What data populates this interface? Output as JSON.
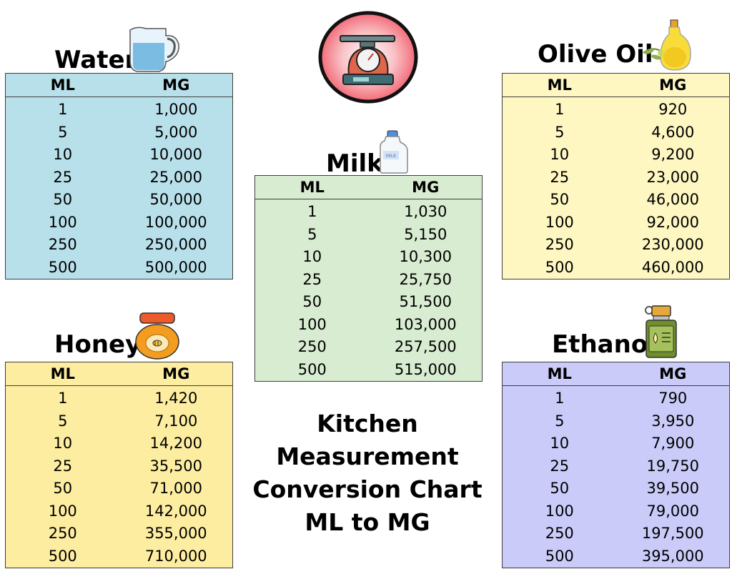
{
  "title": {
    "line1": "Kitchen Measurement",
    "line2": "Conversion Chart",
    "line3": "ML to MG"
  },
  "tables": {
    "water": {
      "name": "Water",
      "icon": "water-pitcher-icon",
      "bg": "#b8e0ea",
      "headers": [
        "ML",
        "MG"
      ],
      "rows": [
        [
          "1",
          "1,000"
        ],
        [
          "5",
          "5,000"
        ],
        [
          "10",
          "10,000"
        ],
        [
          "25",
          "25,000"
        ],
        [
          "50",
          "50,000"
        ],
        [
          "100",
          "100,000"
        ],
        [
          "250",
          "250,000"
        ],
        [
          "500",
          "500,000"
        ]
      ]
    },
    "milk": {
      "name": "Milk",
      "icon": "milk-jug-icon",
      "bg": "#d8ecd1",
      "headers": [
        "ML",
        "MG"
      ],
      "rows": [
        [
          "1",
          "1,030"
        ],
        [
          "5",
          "5,150"
        ],
        [
          "10",
          "10,300"
        ],
        [
          "25",
          "25,750"
        ],
        [
          "50",
          "51,500"
        ],
        [
          "100",
          "103,000"
        ],
        [
          "250",
          "257,500"
        ],
        [
          "500",
          "515,000"
        ]
      ]
    },
    "olive_oil": {
      "name": "Olive Oil",
      "icon": "olive-oil-bottle-icon",
      "bg": "#fef7c2",
      "headers": [
        "ML",
        "MG"
      ],
      "rows": [
        [
          "1",
          "920"
        ],
        [
          "5",
          "4,600"
        ],
        [
          "10",
          "9,200"
        ],
        [
          "25",
          "23,000"
        ],
        [
          "50",
          "46,000"
        ],
        [
          "100",
          "92,000"
        ],
        [
          "250",
          "230,000"
        ],
        [
          "500",
          "460,000"
        ]
      ]
    },
    "honey": {
      "name": "Honey",
      "icon": "honey-jar-icon",
      "bg": "#fdeda1",
      "headers": [
        "ML",
        "MG"
      ],
      "rows": [
        [
          "1",
          "1,420"
        ],
        [
          "5",
          "7,100"
        ],
        [
          "10",
          "14,200"
        ],
        [
          "25",
          "35,500"
        ],
        [
          "50",
          "71,000"
        ],
        [
          "100",
          "142,000"
        ],
        [
          "250",
          "355,000"
        ],
        [
          "500",
          "710,000"
        ]
      ]
    },
    "ethanol": {
      "name": "Ethanol",
      "icon": "ethanol-bottle-icon",
      "bg": "#cacbf9",
      "headers": [
        "ML",
        "MG"
      ],
      "rows": [
        [
          "1",
          "790"
        ],
        [
          "5",
          "3,950"
        ],
        [
          "10",
          "7,900"
        ],
        [
          "25",
          "19,750"
        ],
        [
          "50",
          "39,500"
        ],
        [
          "100",
          "79,000"
        ],
        [
          "250",
          "197,500"
        ],
        [
          "500",
          "395,000"
        ]
      ]
    }
  },
  "center_icon": "kitchen-scale-icon"
}
